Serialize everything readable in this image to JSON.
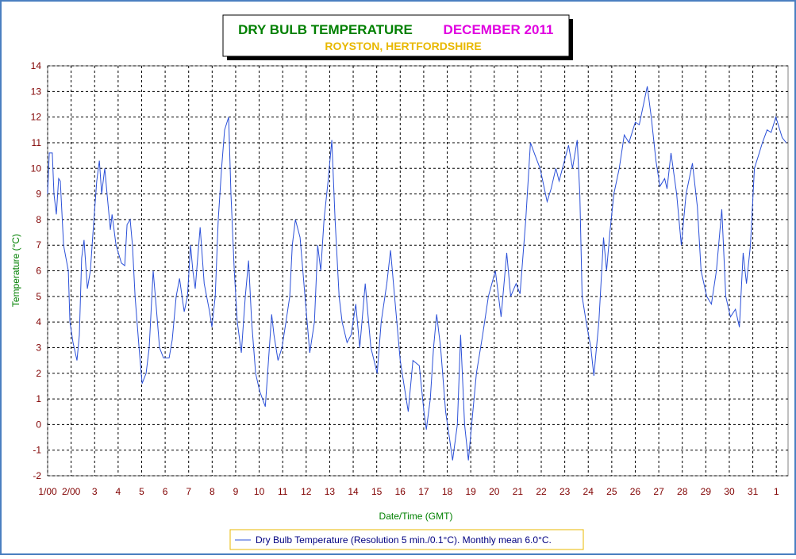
{
  "chart_data": {
    "type": "line",
    "title": "DRY BULB TEMPERATURE",
    "title_color": "#008000",
    "title_period": "DECEMBER 2011",
    "title_period_color": "#e000e0",
    "subtitle": "ROYSTON, HERTFORDSHIRE",
    "subtitle_color": "#e8b800",
    "x_label": "Date/Time (GMT)",
    "y_label": "Temperature (°C)",
    "grid": true,
    "xlim": [
      1,
      32.5
    ],
    "ylim": [
      -2,
      14
    ],
    "yticks": [
      -2,
      -1,
      0,
      1,
      2,
      3,
      4,
      5,
      6,
      7,
      8,
      9,
      10,
      11,
      12,
      13,
      14
    ],
    "xticks": [
      {
        "value": 1,
        "label": "1/00"
      },
      {
        "value": 2,
        "label": "2/00"
      },
      3,
      4,
      5,
      6,
      7,
      8,
      9,
      10,
      11,
      12,
      13,
      14,
      15,
      16,
      17,
      18,
      19,
      20,
      21,
      22,
      23,
      24,
      25,
      26,
      27,
      28,
      29,
      30,
      31,
      {
        "value": 32,
        "label": "1"
      }
    ],
    "x": [
      1,
      1.07,
      1.2,
      1.27,
      1.37,
      1.47,
      1.54,
      1.68,
      1.88,
      1.95,
      2.08,
      2.25,
      2.35,
      2.45,
      2.55,
      2.69,
      2.82,
      2.93,
      3.09,
      3.2,
      3.3,
      3.43,
      3.53,
      3.67,
      3.74,
      3.91,
      4.14,
      4.28,
      4.38,
      4.51,
      4.61,
      4.72,
      4.89,
      5.02,
      5.19,
      5.32,
      5.49,
      5.63,
      5.76,
      5.93,
      6.17,
      6.3,
      6.47,
      6.61,
      6.81,
      6.95,
      7.08,
      7.18,
      7.28,
      7.49,
      7.66,
      7.89,
      7.99,
      8.13,
      8.26,
      8.4,
      8.53,
      8.7,
      8.8,
      8.94,
      9.07,
      9.24,
      9.41,
      9.55,
      9.68,
      9.85,
      10.02,
      10.26,
      10.36,
      10.53,
      10.63,
      10.8,
      10.97,
      11.14,
      11.3,
      11.41,
      11.54,
      11.74,
      11.95,
      12.15,
      12.35,
      12.49,
      12.62,
      12.76,
      12.93,
      13.09,
      13.23,
      13.4,
      13.53,
      13.74,
      13.91,
      14.11,
      14.28,
      14.51,
      14.75,
      15.02,
      15.19,
      15.43,
      15.59,
      15.76,
      16,
      16.17,
      16.34,
      16.54,
      16.81,
      17.01,
      17.11,
      17.28,
      17.42,
      17.55,
      17.72,
      17.93,
      18.09,
      18.23,
      18.43,
      18.57,
      18.74,
      18.9,
      19.04,
      19.24,
      19.51,
      19.75,
      20.05,
      20.29,
      20.53,
      20.7,
      20.93,
      21.1,
      21.34,
      21.54,
      21.74,
      21.95,
      22.25,
      22.42,
      22.62,
      22.76,
      23.16,
      23.33,
      23.53,
      23.64,
      23.74,
      23.91,
      24.11,
      24.24,
      24.45,
      24.65,
      24.78,
      24.92,
      25.09,
      25.32,
      25.53,
      25.73,
      26,
      26.17,
      26.51,
      26.68,
      26.88,
      27.05,
      27.25,
      27.35,
      27.52,
      27.76,
      27.96,
      28.16,
      28.43,
      28.64,
      28.8,
      29.04,
      29.24,
      29.45,
      29.68,
      29.85,
      30.05,
      30.26,
      30.43,
      30.59,
      30.73,
      30.9,
      31.07,
      31.24,
      31.41,
      31.61,
      31.78,
      31.98,
      32.25,
      32.42
    ],
    "series": [
      {
        "name": "Dry Bulb Temperature (Resolution 5 min./0.1°C). Monthly mean 6.0°C.",
        "color": "#2b50d8",
        "values": [
          9,
          10.6,
          10.6,
          9,
          8.2,
          9.6,
          9.5,
          7,
          6,
          4,
          3.2,
          2.5,
          3.5,
          6.5,
          7.2,
          5.3,
          6,
          7.5,
          9.5,
          10.3,
          9,
          10,
          9,
          7.6,
          8.2,
          7,
          6.3,
          6.2,
          7.8,
          8,
          7,
          5,
          3,
          1.6,
          2,
          3,
          6,
          4.5,
          3,
          2.6,
          2.6,
          3.3,
          5,
          5.7,
          4.4,
          5,
          7,
          6,
          5.3,
          7.7,
          5.5,
          4.4,
          3.8,
          5,
          8,
          10,
          11.5,
          12,
          9,
          6,
          4,
          2.8,
          5,
          6.4,
          4,
          2,
          1.3,
          0.7,
          2,
          4.3,
          3.5,
          2.5,
          3,
          4,
          5,
          7,
          8,
          7.3,
          5,
          2.8,
          4,
          7,
          6,
          8,
          9.5,
          11.1,
          8,
          5,
          4,
          3.2,
          3.5,
          4.7,
          3,
          5.5,
          3,
          2,
          4,
          5.5,
          6.8,
          5,
          2.5,
          1.5,
          0.5,
          2.5,
          2.3,
          0.5,
          -0.2,
          1,
          3,
          4.3,
          3,
          0.5,
          -0.5,
          -1.4,
          0,
          3.5,
          0,
          -1.4,
          0,
          2,
          3.5,
          5,
          6,
          4.2,
          6.7,
          5,
          5.5,
          5.1,
          8,
          11,
          10.5,
          10,
          8.7,
          9.2,
          10,
          9.5,
          10.9,
          10,
          11.1,
          9,
          5,
          4,
          3,
          1.9,
          4,
          7.3,
          6,
          7.5,
          9,
          10,
          11.3,
          11,
          11.8,
          11.7,
          13.2,
          12,
          10.3,
          9.3,
          9.6,
          9.2,
          10.6,
          9,
          7,
          9,
          10.2,
          8.5,
          6,
          5,
          4.7,
          6,
          8.4,
          5,
          4.2,
          4.5,
          3.8,
          6.7,
          5.5,
          7,
          10,
          10.5,
          11,
          11.5,
          11.4,
          12,
          11.2,
          11
        ]
      }
    ]
  }
}
